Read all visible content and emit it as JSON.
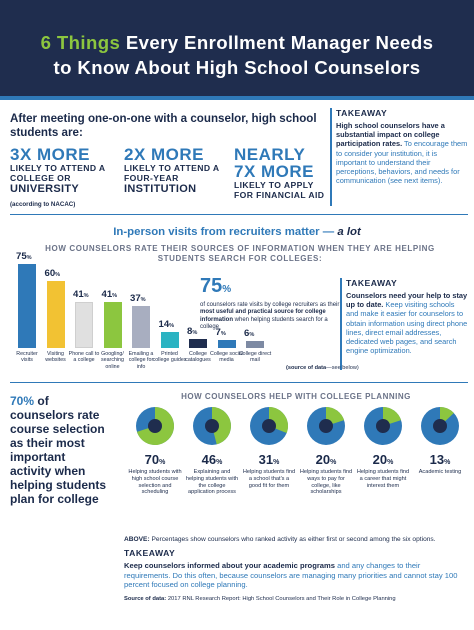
{
  "header": {
    "accent": "6 Things",
    "title_rest": " Every Enrollment Manager Needs",
    "title_line2": "to Know About High School Counselors"
  },
  "section1": {
    "lead": "After meeting one-on-one with a counselor, high school students are:",
    "stats": [
      {
        "big": "3X MORE",
        "sub": "LIKELY TO ATTEND A COLLEGE OR",
        "sub2": "UNIVERSITY",
        "note": "(according to NACAC)"
      },
      {
        "big": "2X MORE",
        "sub": "LIKELY TO ATTEND A FOUR-YEAR",
        "sub2": "INSTITUTION"
      },
      {
        "big": "NEARLY",
        "big2": "7X MORE",
        "sub": "LIKELY TO APPLY FOR FINANCIAL AID"
      }
    ],
    "takeaway": {
      "title": "TAKEAWAY",
      "bold": "High school counselors have a substantial impact on college participation rates.",
      "text": " To encourage them to consider your institution, it is important to understand their perceptions, behaviors, and needs for communication (see next items)."
    }
  },
  "section2": {
    "title": "In-person visits from recruiters matter — ",
    "title_em": "a lot",
    "subtitle": "HOW COUNSELORS RATE THEIR SOURCES OF INFORMATION WHEN THEY ARE HELPING STUDENTS SEARCH FOR COLLEGES:",
    "callout": {
      "big": "75",
      "unit": "%",
      "pre": "of counselors rate visits by college recruiters as their ",
      "bold": "most useful and practical source for college information",
      "post": " when helping students search for a college"
    },
    "takeaway": {
      "title": "TAKEAWAY",
      "bold": "Counselors need your help to stay up to date.",
      "text": " Keep visiting schools and make it easier for counselors to obtain information using direct phone lines, direct email addresses, dedicated web pages, and search engine optimization."
    },
    "source_note": "(source of data",
    "source_note_rest": "—see below)"
  },
  "chart_data": {
    "type": "bar",
    "categories": [
      "Recruiter visits",
      "Visiting websites",
      "Phone call to a college",
      "Googling/ searching online",
      "Emailing a college for info",
      "Printed college guides",
      "College catalogues",
      "College social media",
      "College direct mail"
    ],
    "values": [
      75,
      60,
      41,
      41,
      37,
      14,
      8,
      7,
      6
    ],
    "colors": [
      "#2f79b8",
      "#f2c233",
      "#e0e0e0",
      "#8cc63f",
      "#a8aec0",
      "#2bb3c2",
      "#1f2d4e",
      "#2f79b8",
      "#7d8aa3"
    ],
    "ylim": [
      0,
      80
    ]
  },
  "section3": {
    "lead_pct": "70%",
    "lead": " of counselors rate course selection as their most important activity when helping students plan for college",
    "heading": "HOW COUNSELORS HELP WITH COLLEGE PLANNING",
    "items": [
      {
        "value": 70,
        "label": "Helping students with high school course selection and scheduling"
      },
      {
        "value": 46,
        "label": "Explaining and helping students with the college application process"
      },
      {
        "value": 31,
        "label": "Helping students find a school that's a good fit for them"
      },
      {
        "value": 20,
        "label": "Helping students find ways to pay for college, like scholarships"
      },
      {
        "value": 20,
        "label": "Helping students find a career that might interest them"
      },
      {
        "value": 13,
        "label": "Academic testing"
      }
    ],
    "above_bold": "ABOVE:",
    "above": " Percentages show counselors who ranked activity as either first or second among the six options.",
    "takeaway": {
      "title": "TAKEAWAY",
      "bold": "Keep counselors informed about your academic programs",
      "text": " and any changes to their requirements. Do this often, because counselors are managing many priorities and cannot stay 100 percent focused on college planning."
    },
    "source_bold": "Source of data:",
    "source": " 2017 RNL Research Report: High School Counselors and Their Role in College Planning"
  }
}
